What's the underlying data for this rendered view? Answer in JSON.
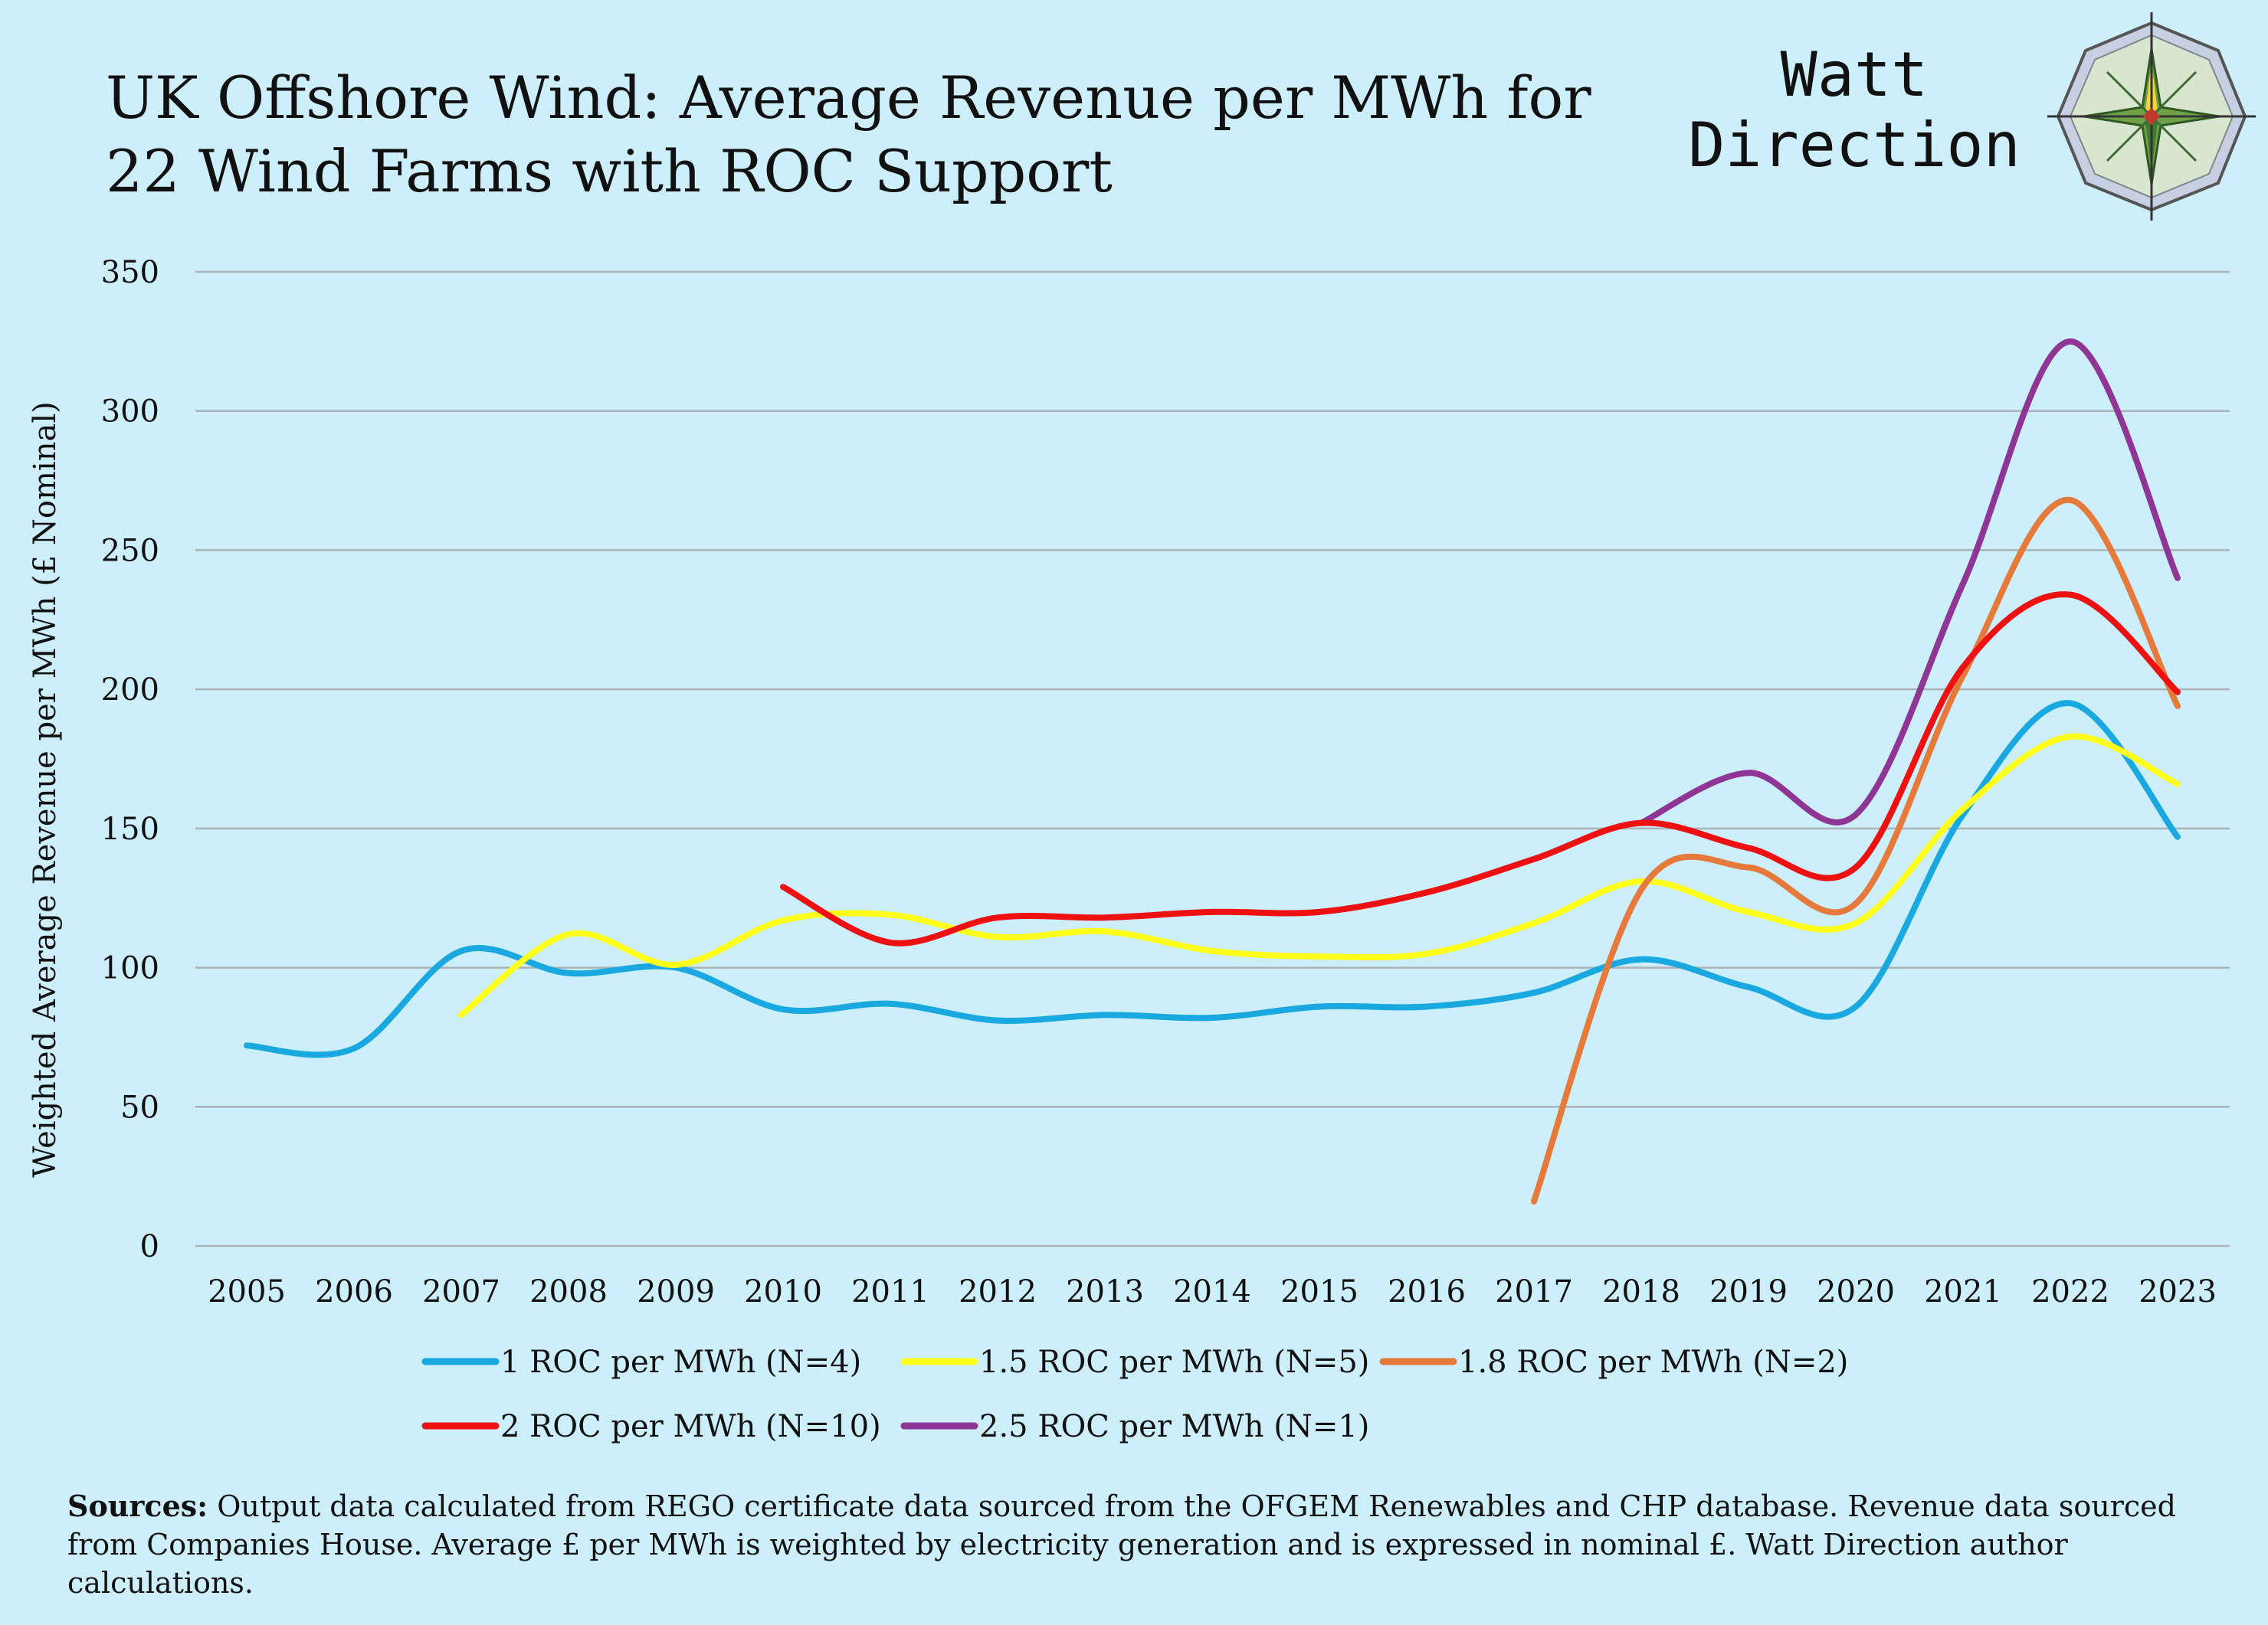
{
  "title": "UK Offshore Wind: Average Revenue per MWh for 22 Wind Farms with ROC Support",
  "brand": "Watt\nDirection",
  "logo_icon": "compass-rose-icon",
  "sources": {
    "label": "Sources:",
    "text": "Output data calculated from REGO certificate data sourced from the OFGEM Renewables and CHP database. Revenue data sourced from Companies House. Average £ per MWh is weighted by electricity generation and is expressed in nominal £. Watt Direction author calculations."
  },
  "colors": {
    "background": "#cdeefb",
    "grid": "#a9b3b8"
  },
  "chart_data": {
    "type": "line",
    "title": "UK Offshore Wind: Average Revenue per MWh for 22 Wind Farms with ROC Support",
    "xlabel": "",
    "ylabel": "Weighted Average Revenue per MWh (£ Nominal)",
    "x": [
      "2005",
      "2006",
      "2007",
      "2008",
      "2009",
      "2010",
      "2011",
      "2012",
      "2013",
      "2014",
      "2015",
      "2016",
      "2017",
      "2018",
      "2019",
      "2020",
      "2021",
      "2022",
      "2023"
    ],
    "ylim": [
      0,
      350
    ],
    "yticks": [
      0,
      50,
      100,
      150,
      200,
      250,
      300,
      350
    ],
    "grid": true,
    "legend": "bottom",
    "series": [
      {
        "name": "1 ROC per MWh (N=4)",
        "color": "#1aa8e0",
        "values": [
          72,
          71,
          106,
          98,
          100,
          85,
          87,
          81,
          83,
          82,
          86,
          86,
          91,
          103,
          93,
          86,
          155,
          195,
          147
        ]
      },
      {
        "name": "1.5 ROC per MWh (N=5)",
        "color": "#ffff1a",
        "values": [
          null,
          null,
          83,
          112,
          101,
          117,
          119,
          111,
          113,
          106,
          104,
          105,
          116,
          131,
          120,
          116,
          157,
          183,
          166
        ]
      },
      {
        "name": "1.8 ROC per MWh (N=2)",
        "color": "#e57a3a",
        "values": [
          null,
          null,
          null,
          null,
          null,
          null,
          null,
          null,
          null,
          null,
          null,
          null,
          16,
          128,
          136,
          123,
          205,
          268,
          194
        ]
      },
      {
        "name": "2 ROC per MWh (N=10)",
        "color": "#ee1111",
        "values": [
          null,
          null,
          null,
          null,
          null,
          129,
          109,
          118,
          118,
          120,
          120,
          127,
          139,
          152,
          143,
          136,
          208,
          234,
          199
        ]
      },
      {
        "name": "2.5 ROC per MWh (N=1)",
        "color": "#8e3596",
        "values": [
          null,
          null,
          null,
          null,
          null,
          null,
          null,
          null,
          null,
          null,
          null,
          null,
          null,
          152,
          170,
          155,
          238,
          325,
          240
        ]
      }
    ]
  }
}
